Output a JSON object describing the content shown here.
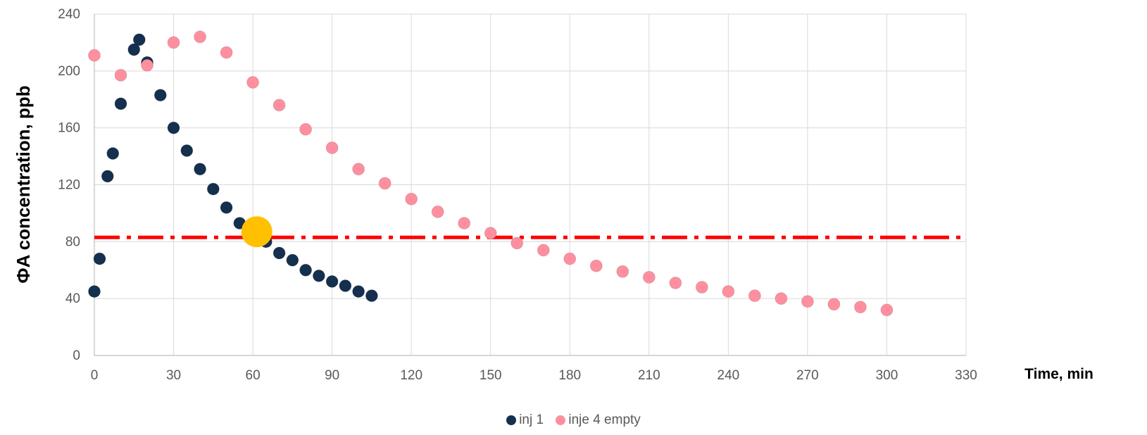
{
  "chart_data": {
    "type": "scatter",
    "ylabel": "ФA concentration, ppb",
    "xlabel": "Time, min",
    "xlim": [
      0,
      330
    ],
    "ylim": [
      0,
      240
    ],
    "x_ticks": [
      0,
      30,
      60,
      90,
      120,
      150,
      180,
      210,
      240,
      270,
      300,
      330
    ],
    "y_ticks": [
      0,
      40,
      80,
      120,
      160,
      200,
      240
    ],
    "grid": true,
    "legend_position": "bottom",
    "series": [
      {
        "name": "inj 1",
        "color": "#14304e",
        "points": [
          [
            0,
            45
          ],
          [
            2,
            68
          ],
          [
            5,
            126
          ],
          [
            7,
            142
          ],
          [
            10,
            177
          ],
          [
            15,
            215
          ],
          [
            17,
            222
          ],
          [
            20,
            206
          ],
          [
            25,
            183
          ],
          [
            30,
            160
          ],
          [
            35,
            144
          ],
          [
            40,
            131
          ],
          [
            45,
            117
          ],
          [
            50,
            104
          ],
          [
            55,
            93
          ],
          [
            60,
            86
          ],
          [
            65,
            80
          ],
          [
            70,
            72
          ],
          [
            75,
            67
          ],
          [
            80,
            60
          ],
          [
            85,
            56
          ],
          [
            90,
            52
          ],
          [
            95,
            49
          ],
          [
            100,
            45
          ],
          [
            105,
            42
          ]
        ]
      },
      {
        "name": "inje 4 empty",
        "color": "#ff8f9f",
        "points": [
          [
            0,
            211
          ],
          [
            10,
            197
          ],
          [
            20,
            204
          ],
          [
            30,
            220
          ],
          [
            40,
            224
          ],
          [
            50,
            213
          ],
          [
            60,
            192
          ],
          [
            70,
            176
          ],
          [
            80,
            159
          ],
          [
            90,
            146
          ],
          [
            100,
            131
          ],
          [
            110,
            121
          ],
          [
            120,
            110
          ],
          [
            130,
            101
          ],
          [
            140,
            93
          ],
          [
            150,
            86
          ],
          [
            160,
            79
          ],
          [
            170,
            74
          ],
          [
            180,
            68
          ],
          [
            190,
            63
          ],
          [
            200,
            59
          ],
          [
            210,
            55
          ],
          [
            220,
            51
          ],
          [
            230,
            48
          ],
          [
            240,
            45
          ],
          [
            250,
            42
          ],
          [
            260,
            40
          ],
          [
            270,
            38
          ],
          [
            280,
            36
          ],
          [
            290,
            34
          ],
          [
            300,
            32
          ]
        ]
      }
    ],
    "threshold_line": {
      "y": 83,
      "color": "#ff0000",
      "style": "dash-dot"
    },
    "highlight_point": {
      "x": 61.5,
      "y": 87,
      "color": "#ffc000"
    }
  }
}
